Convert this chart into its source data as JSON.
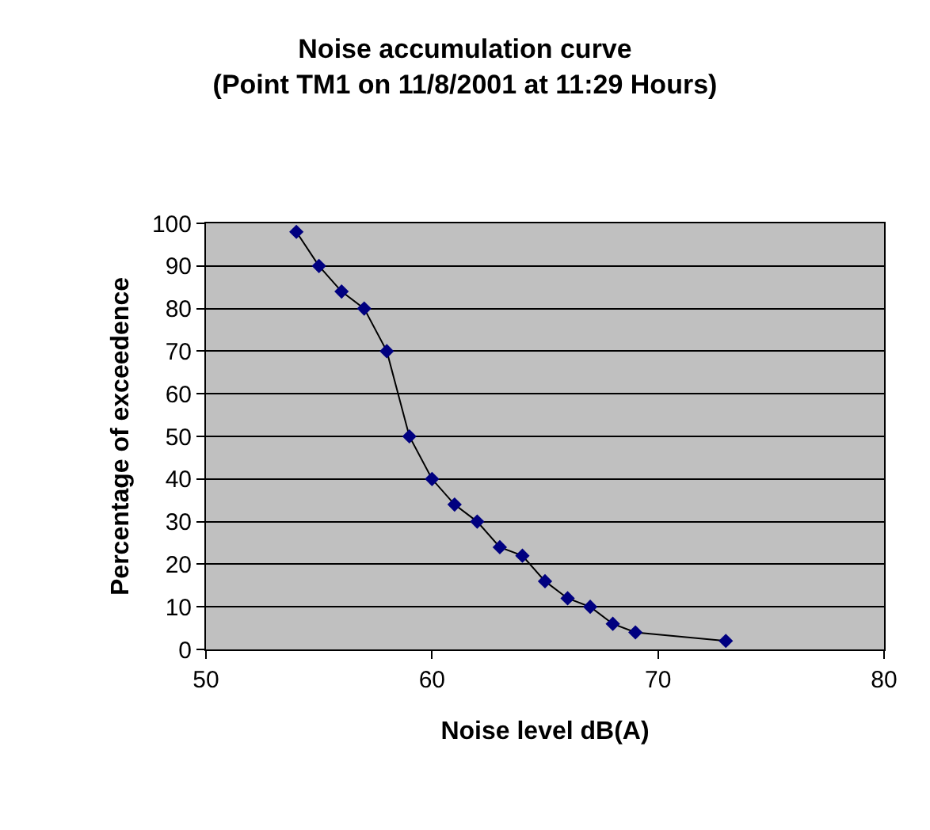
{
  "chart_data": {
    "type": "line",
    "title": "Noise accumulation curve",
    "subtitle": "(Point TM1 on 11/8/2001 at 11:29 Hours)",
    "xlabel": "Noise level dB(A)",
    "ylabel": "Percentage of exceedence",
    "x": [
      54,
      55,
      56,
      57,
      58,
      59,
      60,
      61,
      62,
      63,
      64,
      65,
      66,
      67,
      68,
      69,
      73
    ],
    "series": [
      {
        "color": "#000080",
        "values": [
          98,
          90,
          84,
          80,
          70,
          50,
          40,
          34,
          30,
          24,
          22,
          16,
          12,
          10,
          6,
          4,
          2
        ]
      }
    ],
    "xlim": [
      50,
      80
    ],
    "xticks": [
      50,
      60,
      70,
      80
    ],
    "ylim": [
      0,
      100
    ],
    "yticks": [
      0,
      10,
      20,
      30,
      40,
      50,
      60,
      70,
      80,
      90,
      100
    ],
    "grid": "y",
    "marker": "diamond",
    "line_style": "solid"
  }
}
